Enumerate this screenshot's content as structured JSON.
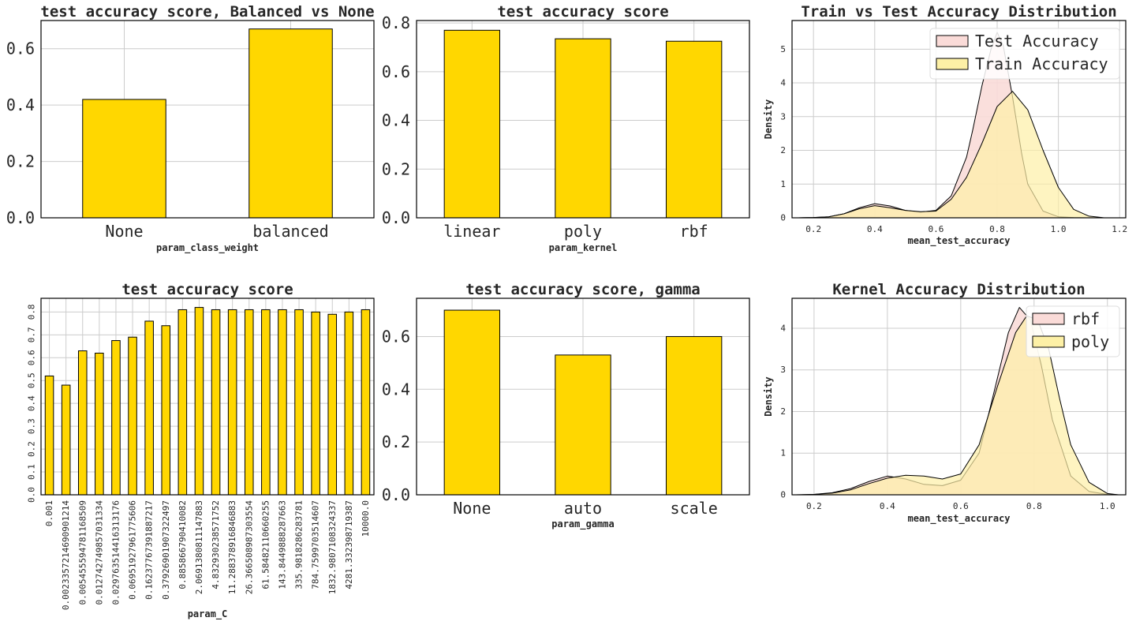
{
  "colors": {
    "bar": "#FFD700",
    "edge": "#000000",
    "grid": "#cccccc",
    "test_fill": "#FADBD8",
    "train_fill": "#FDF0A6",
    "overlap_fill": "#F9D8A0"
  },
  "chart_data": [
    {
      "id": "p1",
      "type": "bar",
      "title": "test accuracy score, Balanced vs None",
      "xlabel": "param_class_weight",
      "ylabel": "",
      "categories": [
        "None",
        "balanced"
      ],
      "values": [
        0.42,
        0.67
      ],
      "yticks": [
        "0.0",
        "0.2",
        "0.4",
        "0.6"
      ],
      "ylim": [
        0,
        0.7
      ],
      "grid": true
    },
    {
      "id": "p2",
      "type": "bar",
      "title": "test accuracy score",
      "xlabel": "param_kernel",
      "ylabel": "",
      "categories": [
        "linear",
        "poly",
        "rbf"
      ],
      "values": [
        0.77,
        0.735,
        0.725
      ],
      "yticks": [
        "0.0",
        "0.2",
        "0.4",
        "0.6",
        "0.8"
      ],
      "ylim": [
        0,
        0.81
      ],
      "grid": true
    },
    {
      "id": "p3",
      "type": "area",
      "title": "Train vs Test Accuracy Distribution",
      "xlabel": "mean_test_accuracy",
      "ylabel": "Density",
      "xlim": [
        0.13,
        1.22
      ],
      "ylim": [
        0,
        5.85
      ],
      "xticks": [
        "0.2",
        "0.4",
        "0.6",
        "0.8",
        "1.0",
        "1.2"
      ],
      "yticks": [
        "0",
        "1",
        "2",
        "3",
        "4",
        "5"
      ],
      "legend": "top-right",
      "grid": true,
      "series": [
        {
          "name": "Test Accuracy",
          "x": [
            0.15,
            0.2,
            0.25,
            0.3,
            0.35,
            0.4,
            0.45,
            0.5,
            0.55,
            0.6,
            0.65,
            0.7,
            0.72,
            0.75,
            0.78,
            0.8,
            0.82,
            0.85,
            0.88,
            0.9,
            0.95,
            1.0,
            1.05,
            1.1
          ],
          "y": [
            0,
            0.01,
            0.03,
            0.12,
            0.3,
            0.42,
            0.35,
            0.22,
            0.17,
            0.22,
            0.65,
            1.8,
            2.6,
            3.9,
            5.0,
            5.5,
            5.1,
            3.6,
            1.9,
            1.0,
            0.2,
            0.03,
            0.01,
            0
          ]
        },
        {
          "name": "Train Accuracy",
          "x": [
            0.15,
            0.2,
            0.25,
            0.3,
            0.35,
            0.4,
            0.45,
            0.5,
            0.55,
            0.6,
            0.65,
            0.7,
            0.75,
            0.8,
            0.85,
            0.9,
            0.95,
            1.0,
            1.05,
            1.1,
            1.15
          ],
          "y": [
            0,
            0.01,
            0.03,
            0.12,
            0.27,
            0.36,
            0.3,
            0.22,
            0.18,
            0.2,
            0.55,
            1.2,
            2.2,
            3.3,
            3.75,
            3.2,
            2.0,
            0.9,
            0.25,
            0.05,
            0
          ]
        }
      ]
    },
    {
      "id": "p4",
      "type": "bar",
      "title": "test accuracy score",
      "xlabel": "param_C",
      "ylabel": "",
      "categories": [
        "0.001",
        "0.0023357214690901214",
        "0.005455594781168509",
        "0.012742749857031334",
        "0.029763514416313176",
        "0.06951927961775606",
        "0.16237767391887217",
        "0.37926901907322497",
        "0.8858667904100823",
        "2.0691380811147883",
        "4.832930238571752",
        "11.288378916846883",
        "26.366508987303554",
        "61.58482110660255",
        "143.8449888287663",
        "335.9818286283781",
        "784.7599703514607",
        "1832.9807108324337",
        "4281.332398719387",
        "10000.0"
      ],
      "labels": [
        "0.001",
        "0.0023357214690901214",
        "0.005455594781168509",
        "0.012742749857031334",
        "0.029763514416313176",
        "0.06951927961775606",
        "0.16237767391887217",
        "0.37926901907322497",
        "0.885866790410082",
        "2.0691380811147883",
        "4.832930238571752",
        "11.288378916846883",
        "26.366508987303554",
        "61.58482110660255",
        "143.8449888287663",
        "335.9818286283781",
        "784.7599703514607",
        "1832.9807108324337",
        "4281.332398719387",
        "10000.0"
      ],
      "values": [
        0.52,
        0.48,
        0.63,
        0.62,
        0.675,
        0.69,
        0.76,
        0.74,
        0.81,
        0.82,
        0.81,
        0.81,
        0.81,
        0.81,
        0.81,
        0.81,
        0.8,
        0.79,
        0.8,
        0.81
      ],
      "yticks": [
        "0.0",
        "0.1",
        "0.2",
        "0.3",
        "0.4",
        "0.5",
        "0.6",
        "0.7",
        "0.8"
      ],
      "ylim": [
        0,
        0.86
      ],
      "grid": true
    },
    {
      "id": "p5",
      "type": "bar",
      "title": "test accuracy score, gamma",
      "xlabel": "param_gamma",
      "ylabel": "",
      "categories": [
        "None",
        "auto",
        "scale"
      ],
      "values": [
        0.7,
        0.53,
        0.6
      ],
      "yticks": [
        "0.0",
        "0.2",
        "0.4",
        "0.6"
      ],
      "ylim": [
        0,
        0.745
      ],
      "grid": true
    },
    {
      "id": "p6",
      "type": "area",
      "title": "Kernel Accuracy Distribution",
      "xlabel": "mean_test_accuracy",
      "ylabel": "Density",
      "xlim": [
        0.14,
        1.05
      ],
      "ylim": [
        0,
        4.72
      ],
      "xticks": [
        "0.2",
        "0.4",
        "0.6",
        "0.8",
        "1.0"
      ],
      "yticks": [
        "0",
        "1",
        "2",
        "3",
        "4"
      ],
      "legend": "top-right",
      "grid": true,
      "series": [
        {
          "name": "rbf",
          "x": [
            0.15,
            0.2,
            0.25,
            0.3,
            0.35,
            0.4,
            0.45,
            0.5,
            0.55,
            0.6,
            0.65,
            0.7,
            0.73,
            0.76,
            0.79,
            0.82,
            0.85,
            0.9,
            0.95,
            1.0,
            1.03
          ],
          "y": [
            0,
            0.01,
            0.05,
            0.15,
            0.32,
            0.45,
            0.38,
            0.25,
            0.22,
            0.35,
            1.0,
            2.8,
            3.9,
            4.5,
            4.2,
            3.1,
            1.8,
            0.45,
            0.08,
            0.01,
            0
          ]
        },
        {
          "name": "poly",
          "x": [
            0.15,
            0.2,
            0.25,
            0.3,
            0.35,
            0.4,
            0.45,
            0.5,
            0.55,
            0.6,
            0.65,
            0.7,
            0.75,
            0.78,
            0.81,
            0.84,
            0.87,
            0.9,
            0.95,
            1.0,
            1.03
          ],
          "y": [
            0,
            0.01,
            0.04,
            0.12,
            0.27,
            0.4,
            0.47,
            0.45,
            0.38,
            0.5,
            1.2,
            2.6,
            3.9,
            4.3,
            4.2,
            3.5,
            2.3,
            1.2,
            0.3,
            0.03,
            0
          ]
        }
      ]
    }
  ]
}
